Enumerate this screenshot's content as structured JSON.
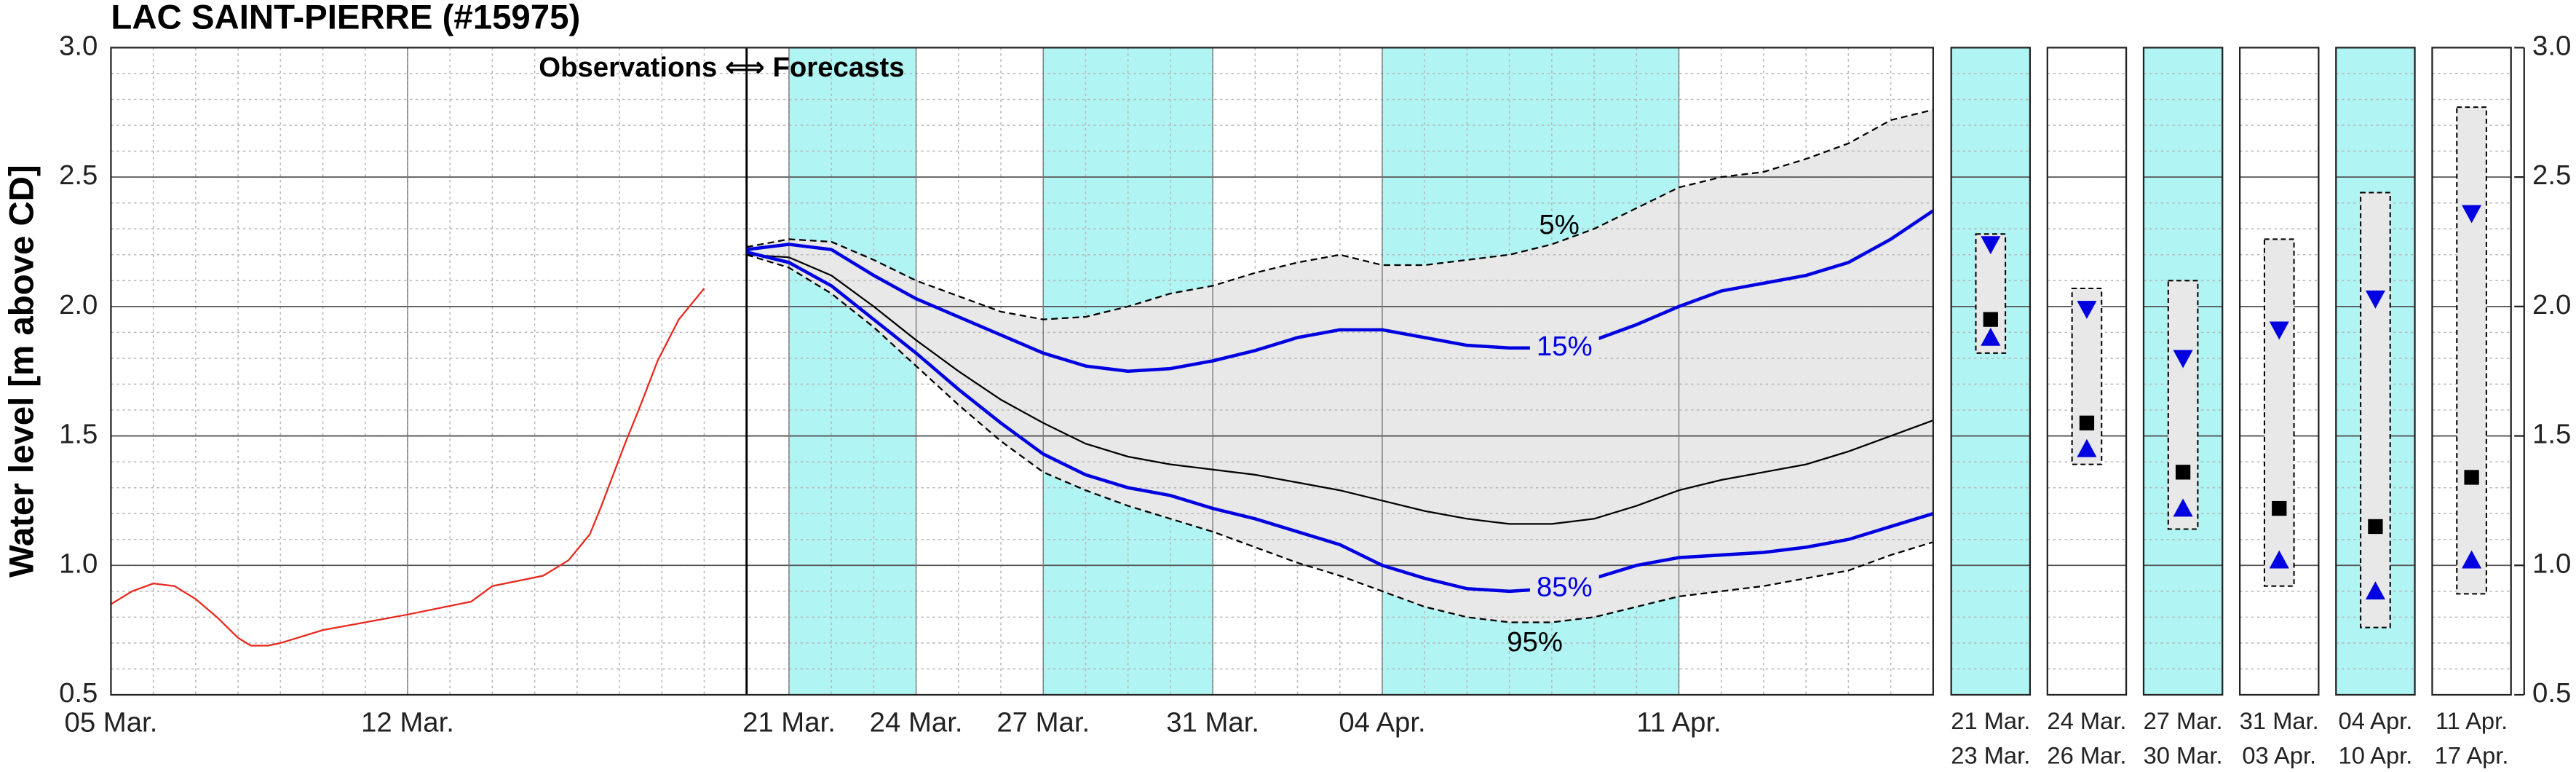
{
  "chart_data": [
    {
      "type": "line",
      "title": "LAC SAINT-PIERRE (#15975)",
      "ylabel": "Water level [m above CD]",
      "annotation": "Observations ⟺ Forecasts",
      "xlim": [
        0,
        43
      ],
      "xticks": [
        {
          "value": 0,
          "label": "05 Mar."
        },
        {
          "value": 7,
          "label": "12 Mar."
        },
        {
          "value": 16,
          "label": "21 Mar."
        },
        {
          "value": 19,
          "label": "24 Mar."
        },
        {
          "value": 22,
          "label": "27 Mar."
        },
        {
          "value": 26,
          "label": "31 Mar."
        },
        {
          "value": 30,
          "label": "04 Apr."
        },
        {
          "value": 37,
          "label": "11 Apr."
        }
      ],
      "ylim": [
        0.5,
        3.0
      ],
      "yticks": [
        0.5,
        {
          "value": 1,
          "label": "1.0"
        },
        1.5,
        {
          "value": 2,
          "label": "2.0"
        },
        2.5,
        {
          "value": 3,
          "label": "3.0"
        }
      ],
      "grid": true,
      "forecast_start": 15,
      "shaded_periods": [
        [
          16,
          19
        ],
        [
          22,
          26
        ],
        [
          30,
          37
        ]
      ],
      "shade_color": "#b0f4f4",
      "band_color": "#e8e8e8",
      "fill_between": [
        1,
        5
      ],
      "series": [
        {
          "color": "#e8281e",
          "x": [
            0,
            0.5,
            1,
            1.5,
            2,
            2.5,
            3,
            3.3,
            3.7,
            4,
            5,
            6,
            7,
            7.9,
            8.5,
            9,
            10.2,
            10.8,
            11.3,
            11.55,
            12.13,
            12.5,
            12.9,
            13.4,
            14
          ],
          "values": [
            0.85,
            0.9,
            0.93,
            0.92,
            0.87,
            0.8,
            0.72,
            0.69,
            0.69,
            0.7,
            0.75,
            0.78,
            0.81,
            0.84,
            0.86,
            0.92,
            0.96,
            1.02,
            1.12,
            1.22,
            1.47,
            1.62,
            1.79,
            1.95,
            2.07
          ]
        },
        {
          "name": "5%",
          "color": "#000000",
          "dash": true,
          "x": [
            15,
            16,
            17,
            18,
            19,
            20,
            21,
            22,
            23,
            24,
            25,
            26,
            27,
            28,
            29,
            30,
            31,
            32,
            33,
            34,
            35,
            36,
            37,
            38,
            39,
            40,
            41,
            42,
            43
          ],
          "values": [
            2.23,
            2.26,
            2.25,
            2.18,
            2.1,
            2.04,
            1.98,
            1.95,
            1.96,
            2.0,
            2.05,
            2.08,
            2.13,
            2.17,
            2.2,
            2.16,
            2.16,
            2.18,
            2.2,
            2.24,
            2.3,
            2.38,
            2.46,
            2.5,
            2.52,
            2.57,
            2.63,
            2.72,
            2.76
          ]
        },
        {
          "name": "15%",
          "color": "#0000e0",
          "x": [
            15,
            16,
            17,
            18,
            19,
            20,
            21,
            22,
            23,
            24,
            25,
            26,
            27,
            28,
            29,
            30,
            31,
            32,
            33,
            34,
            35,
            36,
            37,
            38,
            39,
            40,
            41,
            42,
            43
          ],
          "values": [
            2.22,
            2.24,
            2.22,
            2.12,
            2.03,
            1.96,
            1.89,
            1.82,
            1.77,
            1.75,
            1.76,
            1.79,
            1.83,
            1.88,
            1.91,
            1.91,
            1.88,
            1.85,
            1.84,
            1.84,
            1.87,
            1.93,
            2.0,
            2.06,
            2.09,
            2.12,
            2.17,
            2.26,
            2.37
          ]
        },
        {
          "color": "#000000",
          "x": [
            15,
            16,
            17,
            18,
            19,
            20,
            21,
            22,
            23,
            24,
            25,
            26,
            27,
            28,
            29,
            30,
            31,
            32,
            33,
            34,
            35,
            36,
            37,
            38,
            39,
            40,
            41,
            42,
            43
          ],
          "values": [
            2.2,
            2.19,
            2.12,
            2.0,
            1.87,
            1.75,
            1.64,
            1.55,
            1.47,
            1.42,
            1.39,
            1.37,
            1.35,
            1.32,
            1.29,
            1.25,
            1.21,
            1.18,
            1.16,
            1.16,
            1.18,
            1.23,
            1.29,
            1.33,
            1.36,
            1.39,
            1.44,
            1.5,
            1.56
          ]
        },
        {
          "name": "85%",
          "color": "#0000e0",
          "x": [
            15,
            16,
            17,
            18,
            19,
            20,
            21,
            22,
            23,
            24,
            25,
            26,
            27,
            28,
            29,
            30,
            31,
            32,
            33,
            34,
            35,
            36,
            37,
            38,
            39,
            40,
            41,
            42,
            43
          ],
          "values": [
            2.21,
            2.17,
            2.08,
            1.95,
            1.82,
            1.68,
            1.55,
            1.43,
            1.35,
            1.3,
            1.27,
            1.22,
            1.18,
            1.13,
            1.08,
            1.0,
            0.95,
            0.91,
            0.9,
            0.91,
            0.95,
            1.0,
            1.03,
            1.04,
            1.05,
            1.07,
            1.1,
            1.15,
            1.2
          ]
        },
        {
          "name": "95%",
          "color": "#000000",
          "dash": true,
          "x": [
            15,
            16,
            17,
            18,
            19,
            20,
            21,
            22,
            23,
            24,
            25,
            26,
            27,
            28,
            29,
            30,
            31,
            32,
            33,
            34,
            35,
            36,
            37,
            38,
            39,
            40,
            41,
            42,
            43
          ],
          "values": [
            2.2,
            2.15,
            2.05,
            1.92,
            1.77,
            1.62,
            1.48,
            1.36,
            1.29,
            1.23,
            1.18,
            1.13,
            1.07,
            1.01,
            0.96,
            0.9,
            0.84,
            0.8,
            0.78,
            0.78,
            0.8,
            0.84,
            0.88,
            0.9,
            0.92,
            0.95,
            0.98,
            1.04,
            1.09
          ]
        }
      ]
    },
    {
      "type": "range",
      "categories": [
        [
          "21 Mar.",
          "23 Mar."
        ],
        [
          "24 Mar.",
          "26 Mar."
        ],
        [
          "27 Mar.",
          "30 Mar."
        ],
        [
          "31 Mar.",
          "03 Apr."
        ],
        [
          "04 Apr.",
          "10 Apr."
        ],
        [
          "11 Apr.",
          "17 Apr."
        ]
      ],
      "shaded": [
        true,
        false,
        true,
        false,
        true,
        false
      ],
      "shade_color": "#b0f4f4",
      "box_color": "#e8e8e8",
      "marker_color": "#0000e0",
      "median_color": "#000000",
      "ylim": [
        0.5,
        3.0
      ],
      "yticks": [
        0.5,
        {
          "value": 1,
          "label": "1.0"
        },
        1.5,
        {
          "value": 2,
          "label": "2.0"
        },
        2.5,
        {
          "value": 3,
          "label": "3.0"
        }
      ],
      "box_high": [
        2.28,
        2.07,
        2.1,
        2.26,
        2.44,
        2.77
      ],
      "box_low": [
        1.82,
        1.39,
        1.14,
        0.92,
        0.76,
        0.89
      ],
      "down_marker": [
        2.24,
        1.99,
        1.8,
        1.91,
        2.03,
        2.36
      ],
      "median": [
        1.95,
        1.55,
        1.36,
        1.22,
        1.15,
        1.34
      ],
      "up_marker": [
        1.88,
        1.45,
        1.22,
        1.02,
        0.9,
        1.02
      ]
    }
  ]
}
